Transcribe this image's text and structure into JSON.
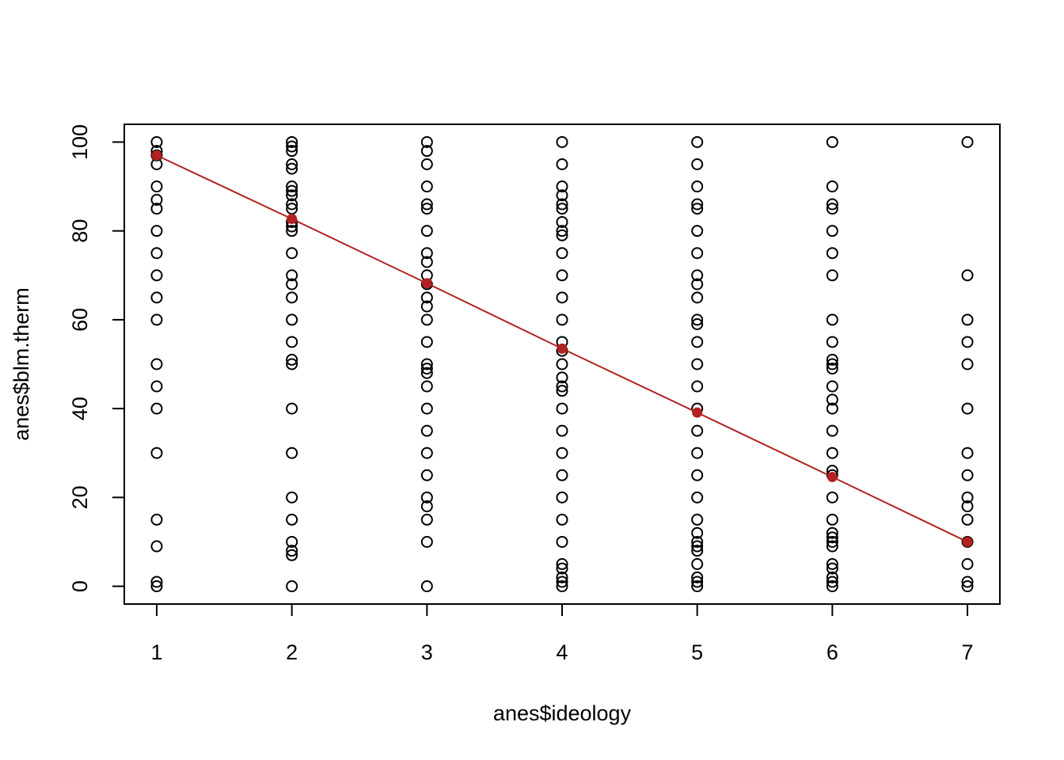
{
  "chart_data": {
    "type": "scatter",
    "xlabel": "anes$ideology",
    "ylabel": "anes$blm.therm",
    "xlim": [
      0.76,
      7.24
    ],
    "ylim": [
      -4,
      104
    ],
    "xticks": [
      1,
      2,
      3,
      4,
      5,
      6,
      7
    ],
    "yticks": [
      0,
      20,
      40,
      60,
      80,
      100
    ],
    "grid": false,
    "series": [
      {
        "color": "#000000",
        "marker": "open",
        "line": false,
        "x": [
          1,
          1,
          1,
          1,
          1,
          1,
          1,
          1,
          1,
          1,
          1,
          1,
          1,
          1,
          1,
          1,
          1,
          1,
          1,
          1,
          2,
          2,
          2,
          2,
          2,
          2,
          2,
          2,
          2,
          2,
          2,
          2,
          2,
          2,
          2,
          2,
          2,
          2,
          2,
          2,
          2,
          2,
          2,
          2,
          2,
          2,
          2,
          2,
          2,
          3,
          3,
          3,
          3,
          3,
          3,
          3,
          3,
          3,
          3,
          3,
          3,
          3,
          3,
          3,
          3,
          3,
          3,
          3,
          3,
          3,
          3,
          3,
          3,
          3,
          3,
          3,
          3,
          4,
          4,
          4,
          4,
          4,
          4,
          4,
          4,
          4,
          4,
          4,
          4,
          4,
          4,
          4,
          4,
          4,
          4,
          4,
          4,
          4,
          4,
          4,
          4,
          4,
          4,
          4,
          4,
          4,
          4,
          4,
          5,
          5,
          5,
          5,
          5,
          5,
          5,
          5,
          5,
          5,
          5,
          5,
          5,
          5,
          5,
          5,
          5,
          5,
          5,
          5,
          5,
          5,
          5,
          5,
          5,
          5,
          5,
          5,
          5,
          6,
          6,
          6,
          6,
          6,
          6,
          6,
          6,
          6,
          6,
          6,
          6,
          6,
          6,
          6,
          6,
          6,
          6,
          6,
          6,
          6,
          6,
          6,
          6,
          6,
          6,
          6,
          6,
          6,
          6,
          7,
          7,
          7,
          7,
          7,
          7,
          7,
          7,
          7,
          7,
          7,
          7,
          7,
          7,
          7
        ],
        "values": [
          100,
          98,
          97,
          95,
          90,
          87,
          85,
          80,
          75,
          70,
          65,
          60,
          50,
          45,
          40,
          30,
          15,
          9,
          1,
          0,
          100,
          99,
          98,
          95,
          94,
          90,
          89,
          88,
          86,
          85,
          82,
          81,
          80,
          75,
          70,
          68,
          65,
          60,
          55,
          51,
          50,
          40,
          30,
          20,
          15,
          10,
          8,
          7,
          0,
          100,
          98,
          95,
          90,
          86,
          85,
          80,
          75,
          73,
          70,
          68,
          65,
          63,
          60,
          55,
          50,
          49,
          48,
          45,
          40,
          35,
          30,
          25,
          20,
          18,
          15,
          10,
          0,
          100,
          95,
          90,
          88,
          86,
          85,
          82,
          80,
          79,
          75,
          70,
          65,
          60,
          55,
          53,
          50,
          47,
          45,
          44,
          40,
          35,
          30,
          25,
          20,
          15,
          10,
          5,
          4,
          2,
          1,
          0,
          100,
          95,
          90,
          86,
          85,
          80,
          75,
          70,
          68,
          65,
          60,
          59,
          55,
          50,
          45,
          40,
          35,
          30,
          25,
          20,
          15,
          12,
          10,
          9,
          8,
          5,
          2,
          1,
          0,
          100,
          90,
          86,
          85,
          80,
          75,
          70,
          60,
          55,
          51,
          50,
          49,
          45,
          42,
          40,
          35,
          30,
          26,
          25,
          20,
          15,
          12,
          11,
          10,
          9,
          5,
          4,
          2,
          1,
          0,
          100,
          70,
          60,
          55,
          50,
          40,
          30,
          25,
          20,
          18,
          15,
          10,
          5,
          1,
          0
        ]
      },
      {
        "color": "#b22222",
        "marker": "filled",
        "line": true,
        "x": [
          1,
          2,
          3,
          4,
          5,
          6,
          7
        ],
        "values": [
          97,
          82.7,
          68.2,
          53.5,
          39.1,
          24.6,
          10
        ]
      }
    ]
  }
}
